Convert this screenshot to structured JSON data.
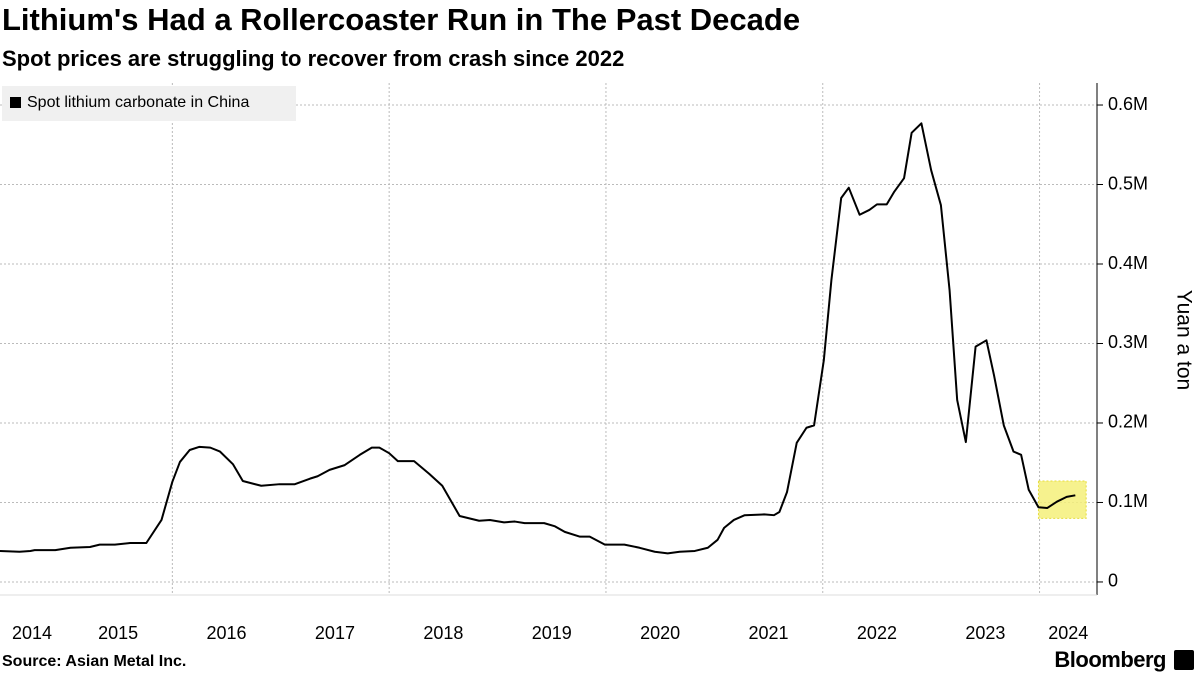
{
  "chart_data": {
    "type": "line",
    "title": "Lithium's Had a Rollercoaster Run in The Past Decade",
    "subtitle": "Spot prices are struggling to recover from crash since 2022",
    "y_axis_label": "Yuan a ton",
    "source": "Source: Asian Metal Inc.",
    "brand": "Bloomberg",
    "legend": "top-left",
    "grid": true,
    "xlim": [
      2014.41,
      2024.53
    ],
    "xticks": [
      2014,
      2015,
      2016,
      2017,
      2018,
      2019,
      2020,
      2021,
      2022,
      2023,
      2024
    ],
    "ylim": [
      -16400,
      627700
    ],
    "yticks": [
      0,
      {
        "value": 100000,
        "label": "0.1M"
      },
      {
        "value": 200000,
        "label": "0.2M"
      },
      {
        "value": 300000,
        "label": "0.3M"
      },
      {
        "value": 400000,
        "label": "0.4M"
      },
      {
        "value": 500000,
        "label": "0.5M"
      },
      {
        "value": 600000,
        "label": "0.6M"
      }
    ],
    "highlight": {
      "x": [
        2023.99,
        2024.43
      ],
      "y": [
        80000,
        127000
      ],
      "color": "#f5f07a"
    },
    "x": [
      2014.41,
      2014.59,
      2014.69,
      2014.73,
      2014.92,
      2015.06,
      2015.24,
      2015.33,
      2015.47,
      2015.61,
      2015.76,
      2015.9,
      2016.0,
      2016.07,
      2016.16,
      2016.25,
      2016.35,
      2016.44,
      2016.56,
      2016.65,
      2016.82,
      2016.99,
      2017.13,
      2017.27,
      2017.34,
      2017.45,
      2017.59,
      2017.73,
      2017.84,
      2017.91,
      2018.0,
      2018.08,
      2018.23,
      2018.37,
      2018.49,
      2018.65,
      2018.83,
      2018.93,
      2019.06,
      2019.16,
      2019.25,
      2019.43,
      2019.53,
      2019.62,
      2019.76,
      2019.85,
      2019.99,
      2020.17,
      2020.31,
      2020.45,
      2020.57,
      2020.68,
      2020.82,
      2020.94,
      2021.03,
      2021.09,
      2021.18,
      2021.28,
      2021.46,
      2021.55,
      2021.6,
      2021.67,
      2021.76,
      2021.85,
      2021.92,
      2022.01,
      2022.08,
      2022.17,
      2022.24,
      2022.34,
      2022.43,
      2022.5,
      2022.59,
      2022.66,
      2022.75,
      2022.82,
      2022.91,
      2023.0,
      2023.09,
      2023.17,
      2023.24,
      2023.32,
      2023.41,
      2023.51,
      2023.58,
      2023.67,
      2023.76,
      2023.83,
      2023.9,
      2023.99,
      2024.07,
      2024.16,
      2024.25,
      2024.33
    ],
    "series": [
      {
        "name": "Spot lithium carbonate in China",
        "color": "#000000",
        "values": [
          39000,
          38000,
          39000,
          40000,
          40000,
          43000,
          44000,
          47000,
          47000,
          49000,
          49000,
          78000,
          126000,
          151000,
          166000,
          170000,
          169000,
          164000,
          148000,
          127000,
          121000,
          123000,
          123000,
          130000,
          133000,
          141000,
          147000,
          160000,
          169000,
          169000,
          162000,
          152000,
          152000,
          136000,
          121000,
          83000,
          77000,
          78000,
          75000,
          76000,
          74000,
          74000,
          70000,
          63000,
          57000,
          57000,
          47000,
          47000,
          43000,
          38000,
          36000,
          38000,
          39000,
          43000,
          53000,
          68000,
          78000,
          84000,
          85000,
          84000,
          88000,
          113000,
          175000,
          194000,
          197000,
          279000,
          380000,
          483000,
          496000,
          462000,
          468000,
          475000,
          475000,
          491000,
          508000,
          565000,
          577000,
          518000,
          474000,
          367000,
          229000,
          176000,
          296000,
          304000,
          260000,
          197000,
          164000,
          160000,
          116000,
          94000,
          93000,
          101000,
          107000,
          109000
        ]
      }
    ]
  }
}
